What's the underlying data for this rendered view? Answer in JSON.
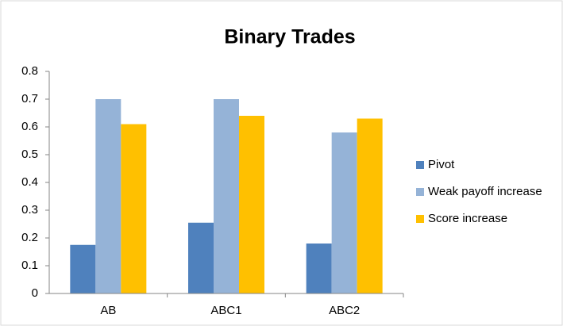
{
  "chart_data": {
    "type": "bar",
    "title": "Binary Trades",
    "categories": [
      "AB",
      "ABC1",
      "ABC2"
    ],
    "series": [
      {
        "name": "Pivot",
        "color": "#4f81bd",
        "values": [
          0.175,
          0.255,
          0.18
        ]
      },
      {
        "name": "Weak payoff increase",
        "color": "#95b3d7",
        "values": [
          0.7,
          0.7,
          0.58
        ]
      },
      {
        "name": "Score increase",
        "color": "#ffc000",
        "values": [
          0.61,
          0.64,
          0.63
        ]
      }
    ],
    "ylim": [
      0,
      0.8
    ],
    "yticks": [
      0,
      0.1,
      0.2,
      0.3,
      0.4,
      0.5,
      0.6,
      0.7,
      0.8
    ],
    "grid": false,
    "legend": "right"
  }
}
